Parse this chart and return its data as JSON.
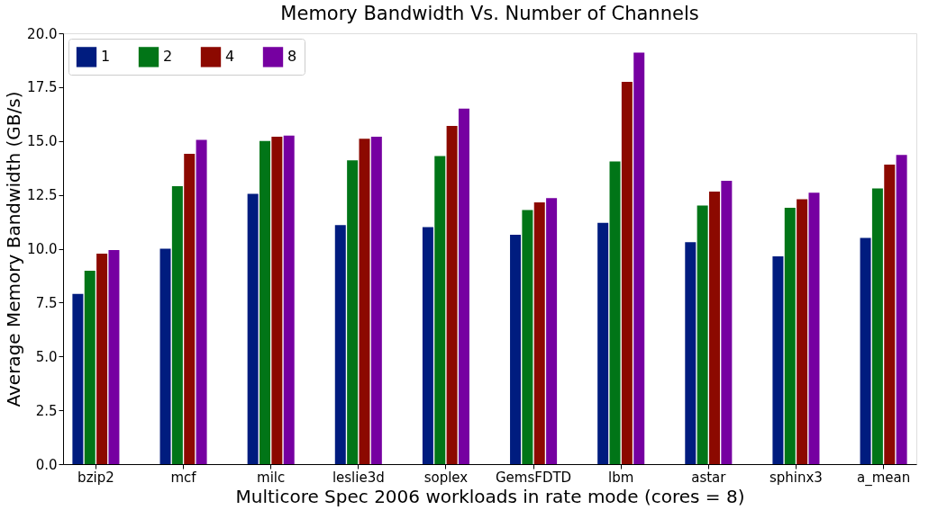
{
  "chart_data": {
    "type": "bar",
    "title": "Memory Bandwidth Vs. Number of Channels",
    "xlabel": "Multicore Spec 2006 workloads in rate mode (cores = 8)",
    "ylabel": "Average Memory Bandwidth (GB/s)",
    "categories": [
      "bzip2",
      "mcf",
      "milc",
      "leslie3d",
      "soplex",
      "GemsFDTD",
      "lbm",
      "astar",
      "sphinx3",
      "a_mean"
    ],
    "series": [
      {
        "name": "1",
        "color": "#001c7f",
        "values": [
          7.9,
          10.0,
          12.55,
          11.1,
          11.0,
          10.65,
          11.2,
          10.3,
          9.65,
          10.5
        ]
      },
      {
        "name": "2",
        "color": "#017517",
        "values": [
          8.98,
          12.9,
          15.0,
          14.1,
          14.3,
          11.8,
          14.05,
          12.0,
          11.9,
          12.8
        ]
      },
      {
        "name": "4",
        "color": "#8c0900",
        "values": [
          9.77,
          14.4,
          15.2,
          15.1,
          15.7,
          12.15,
          17.75,
          12.65,
          12.3,
          13.9
        ]
      },
      {
        "name": "8",
        "color": "#7600a1",
        "values": [
          9.94,
          15.05,
          15.25,
          15.2,
          16.5,
          12.35,
          19.1,
          13.15,
          12.6,
          14.35
        ]
      }
    ],
    "ylim": [
      0,
      20
    ],
    "yticks": [
      {
        "value": 0,
        "label": "0.0"
      },
      {
        "value": 2.5,
        "label": "2.5"
      },
      {
        "value": 5,
        "label": "5.0"
      },
      {
        "value": 7.5,
        "label": "7.5"
      },
      {
        "value": 10,
        "label": "10.0"
      },
      {
        "value": 12.5,
        "label": "12.5"
      },
      {
        "value": 15,
        "label": "15.0"
      },
      {
        "value": 17.5,
        "label": "17.5"
      },
      {
        "value": 20,
        "label": "20.0"
      }
    ],
    "grid": false,
    "legend": "top left"
  }
}
